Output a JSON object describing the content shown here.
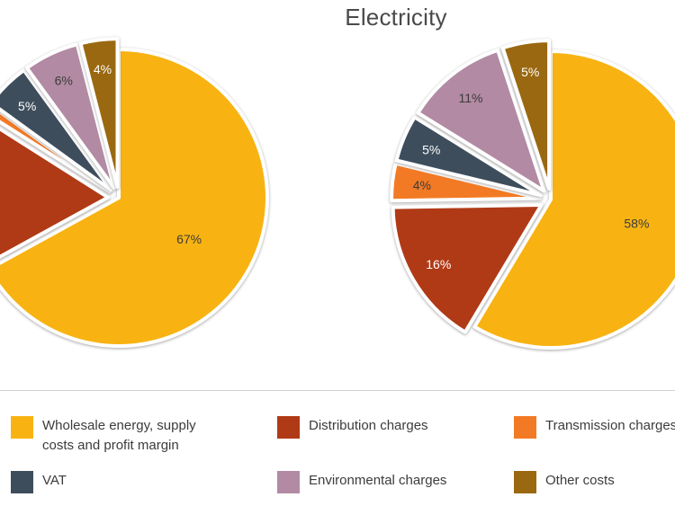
{
  "colors": {
    "wholesale": "#f8b312",
    "distribution": "#b03a16",
    "transmission": "#f37a24",
    "vat": "#3e4d5c",
    "environmental": "#b28aa3",
    "other": "#9a6810"
  },
  "chart_data": [
    {
      "type": "pie",
      "title": "",
      "slices": [
        {
          "key": "wholesale",
          "value": 67,
          "label": "67%"
        },
        {
          "key": "distribution",
          "value": 17,
          "label": "%"
        },
        {
          "key": "transmission",
          "value": 1,
          "label": ""
        },
        {
          "key": "vat",
          "value": 5,
          "label": "5%"
        },
        {
          "key": "environmental",
          "value": 6,
          "label": "6%"
        },
        {
          "key": "other",
          "value": 4,
          "label": "4%"
        }
      ]
    },
    {
      "type": "pie",
      "title": "Electricity",
      "slices": [
        {
          "key": "wholesale",
          "value": 58,
          "label": "58%"
        },
        {
          "key": "distribution",
          "value": 16,
          "label": "16%"
        },
        {
          "key": "transmission",
          "value": 4,
          "label": "4%"
        },
        {
          "key": "vat",
          "value": 5,
          "label": "5%"
        },
        {
          "key": "environmental",
          "value": 11,
          "label": "11%"
        },
        {
          "key": "other",
          "value": 5,
          "label": "5%"
        }
      ]
    }
  ],
  "legend": {
    "wholesale_line1": "Wholesale energy, supply",
    "wholesale_line2": "costs and profit margin",
    "distribution": "Distribution charges",
    "transmission": "Transmission charges",
    "vat": "VAT",
    "environmental": "Environmental charges",
    "other": "Other costs"
  }
}
